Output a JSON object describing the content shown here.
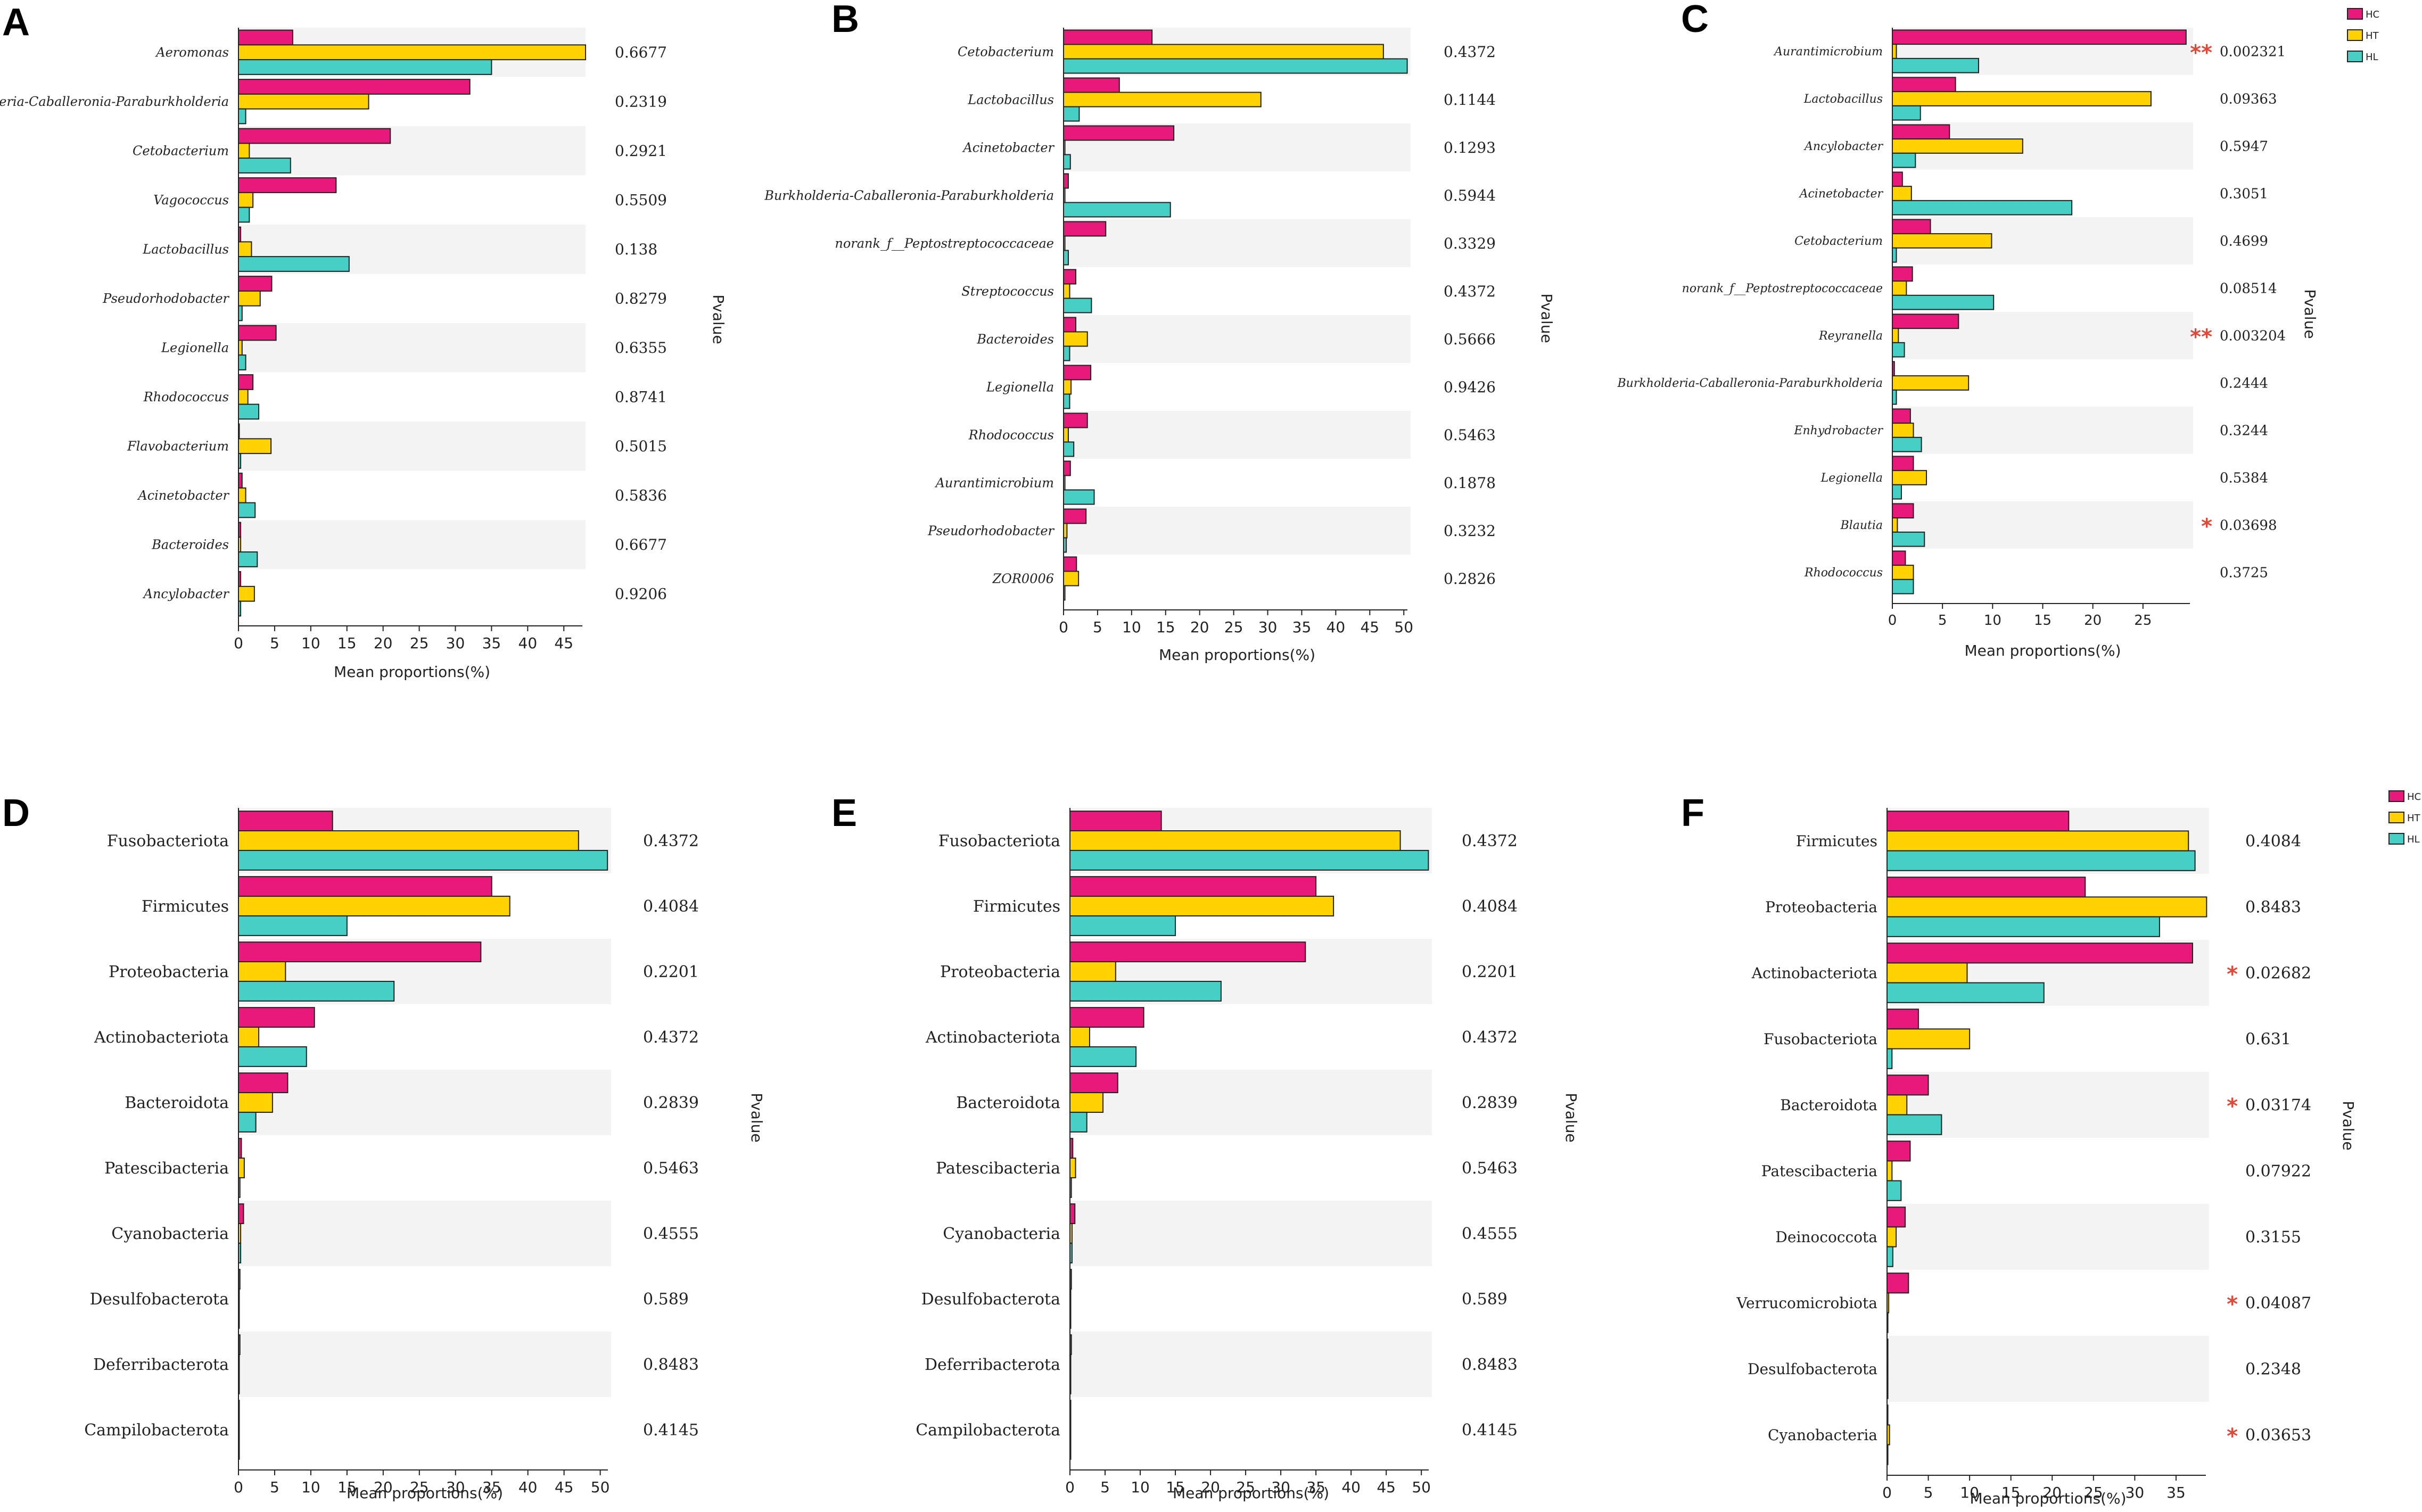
{
  "colors": {
    "HC": "#e8197a",
    "HT": "#ffd200",
    "HL": "#45cfc5",
    "band": "#f3f3f3",
    "sig": "#e0493a"
  },
  "chart_data": [
    {
      "panel": "A",
      "type": "bar",
      "orientation": "horizontal",
      "italic": true,
      "xlabel": "Mean proportions(%)",
      "pvalue_label": "Pvalue",
      "xlim": [
        0,
        48
      ],
      "xticks": [
        0,
        5,
        10,
        15,
        20,
        25,
        30,
        35,
        40,
        45
      ],
      "legend": false,
      "categories": [
        "Aeromonas",
        "Burkholderia-Caballeronia-Paraburkholderia",
        "Cetobacterium",
        "Vagococcus",
        "Lactobacillus",
        "Pseudorhodobacter",
        "Legionella",
        "Rhodococcus",
        "Flavobacterium",
        "Acinetobacter",
        "Bacteroides",
        "Ancylobacter"
      ],
      "series": [
        {
          "name": "HC",
          "values": [
            7.5,
            32,
            21,
            13.5,
            0.3,
            4.6,
            5.2,
            2.0,
            0,
            0.5,
            0.3,
            0.3
          ]
        },
        {
          "name": "HT",
          "values": [
            48,
            18,
            1.5,
            2.0,
            1.8,
            3.0,
            0.5,
            1.3,
            4.5,
            1.0,
            0.3,
            2.2
          ]
        },
        {
          "name": "HL",
          "values": [
            35,
            1.0,
            7.2,
            1.5,
            15.3,
            0.5,
            1.0,
            2.8,
            0.3,
            2.3,
            2.6,
            0.3
          ]
        }
      ],
      "pvalues": [
        "0.6677",
        "0.2319",
        "0.2921",
        "0.5509",
        "0.138",
        "0.8279",
        "0.6355",
        "0.8741",
        "0.5015",
        "0.5836",
        "0.6677",
        "0.9206"
      ],
      "sig": [
        "",
        "",
        "",
        "",
        "",
        "",
        "",
        "",
        "",
        "",
        "",
        ""
      ]
    },
    {
      "panel": "B",
      "type": "bar",
      "orientation": "horizontal",
      "italic": true,
      "xlabel": "Mean proportions(%)",
      "pvalue_label": "Pvalue",
      "xlim": [
        0,
        51
      ],
      "xticks": [
        0,
        5,
        10,
        15,
        20,
        25,
        30,
        35,
        40,
        45,
        50
      ],
      "legend": false,
      "categories": [
        "Cetobacterium",
        "Lactobacillus",
        "Acinetobacter",
        "Burkholderia-Caballeronia-Paraburkholderia",
        "norank_f__Peptostreptococcaceae",
        "Streptococcus",
        "Bacteroides",
        "Legionella",
        "Rhodococcus",
        "Aurantimicrobium",
        "Pseudorhodobacter",
        "ZOR0006"
      ],
      "series": [
        {
          "name": "HC",
          "values": [
            13,
            8.2,
            16.2,
            0.7,
            6.2,
            1.8,
            1.8,
            4.0,
            3.5,
            1.0,
            3.3,
            1.9
          ]
        },
        {
          "name": "HT",
          "values": [
            47,
            29,
            0.2,
            0.2,
            0.2,
            0.9,
            3.5,
            1.1,
            0.7,
            0.2,
            0.5,
            2.2
          ]
        },
        {
          "name": "HL",
          "values": [
            50.5,
            2.3,
            1.0,
            15.7,
            0.7,
            4.1,
            0.9,
            0.9,
            1.5,
            4.5,
            0.4,
            0.2
          ]
        }
      ],
      "pvalues": [
        "0.4372",
        "0.1144",
        "0.1293",
        "0.5944",
        "0.3329",
        "0.4372",
        "0.5666",
        "0.9426",
        "0.5463",
        "0.1878",
        "0.3232",
        "0.2826"
      ],
      "sig": [
        "",
        "",
        "",
        "",
        "",
        "",
        "",
        "",
        "",
        "",
        "",
        ""
      ]
    },
    {
      "panel": "C",
      "type": "bar",
      "orientation": "horizontal",
      "italic": true,
      "xlabel": "Mean proportions(%)",
      "pvalue_label": "Pvalue",
      "xlim": [
        0,
        30
      ],
      "xticks": [
        0,
        5,
        10,
        15,
        20,
        25
      ],
      "legend": true,
      "categories": [
        "Aurantimicrobium",
        "Lactobacillus",
        "Ancylobacter",
        "Acinetobacter",
        "Cetobacterium",
        "norank_f__Peptostreptococcaceae",
        "Reyranella",
        "Burkholderia-Caballeronia-Paraburkholderia",
        "Enhydrobacter",
        "Legionella",
        "Blautia",
        "Rhodococcus"
      ],
      "series": [
        {
          "name": "HC",
          "values": [
            29.3,
            6.3,
            5.7,
            1.0,
            3.8,
            2.0,
            6.6,
            0.2,
            1.8,
            2.1,
            2.1,
            1.3
          ]
        },
        {
          "name": "HT",
          "values": [
            0.4,
            25.8,
            13.0,
            1.9,
            9.9,
            1.4,
            0.6,
            7.6,
            2.1,
            3.4,
            0.5,
            2.1
          ]
        },
        {
          "name": "HL",
          "values": [
            8.6,
            2.8,
            2.3,
            17.9,
            0.4,
            10.1,
            1.2,
            0.4,
            2.9,
            0.9,
            3.2,
            2.1
          ]
        }
      ],
      "pvalues": [
        "0.002321",
        "0.09363",
        "0.5947",
        "0.3051",
        "0.4699",
        "0.08514",
        "0.003204",
        "0.2444",
        "0.3244",
        "0.5384",
        "0.03698",
        "0.3725"
      ],
      "sig": [
        "**",
        "",
        "",
        "",
        "",
        "",
        "**",
        "",
        "",
        "",
        "*",
        ""
      ]
    },
    {
      "panel": "D",
      "type": "bar",
      "orientation": "horizontal",
      "italic": false,
      "xlabel": "Mean proportions(%)",
      "pvalue_label": "Pvalue",
      "xlim": [
        0,
        51.5
      ],
      "xticks": [
        0,
        5,
        10,
        15,
        20,
        25,
        30,
        35,
        40,
        45,
        50
      ],
      "legend": false,
      "categories": [
        "Fusobacteriota",
        "Firmicutes",
        "Proteobacteria",
        "Actinobacteriota",
        "Bacteroidota",
        "Patescibacteria",
        "Cyanobacteria",
        "Desulfobacterota",
        "Deferribacterota",
        "Campilobacterota"
      ],
      "series": [
        {
          "name": "HC",
          "values": [
            13,
            35,
            33.5,
            10.5,
            6.8,
            0.4,
            0.7,
            0.2,
            0.2,
            0.1
          ]
        },
        {
          "name": "HT",
          "values": [
            47,
            37.5,
            6.5,
            2.8,
            4.7,
            0.8,
            0.3,
            0.1,
            0.1,
            0.1
          ]
        },
        {
          "name": "HL",
          "values": [
            51,
            15,
            21.5,
            9.4,
            2.4,
            0.2,
            0.3,
            0.1,
            0.1,
            0.1
          ]
        }
      ],
      "pvalues": [
        "0.4372",
        "0.4084",
        "0.2201",
        "0.4372",
        "0.2839",
        "0.5463",
        "0.4555",
        "0.589",
        "0.8483",
        "0.4145"
      ],
      "sig": [
        "",
        "",
        "",
        "",
        "",
        "",
        "",
        "",
        "",
        ""
      ]
    },
    {
      "panel": "E",
      "type": "bar",
      "orientation": "horizontal",
      "italic": false,
      "xlabel": "Mean proportions(%)",
      "pvalue_label": "Pvalue",
      "xlim": [
        0,
        51.5
      ],
      "xticks": [
        0,
        5,
        10,
        15,
        20,
        25,
        30,
        35,
        40,
        45,
        50
      ],
      "legend": false,
      "categories": [
        "Fusobacteriota",
        "Firmicutes",
        "Proteobacteria",
        "Actinobacteriota",
        "Bacteroidota",
        "Patescibacteria",
        "Cyanobacteria",
        "Desulfobacterota",
        "Deferribacterota",
        "Campilobacterota"
      ],
      "series": [
        {
          "name": "HC",
          "values": [
            13,
            35,
            33.5,
            10.5,
            6.8,
            0.4,
            0.7,
            0.2,
            0.2,
            0.1
          ]
        },
        {
          "name": "HT",
          "values": [
            47,
            37.5,
            6.5,
            2.8,
            4.7,
            0.8,
            0.3,
            0.1,
            0.1,
            0.1
          ]
        },
        {
          "name": "HL",
          "values": [
            51,
            15,
            21.5,
            9.4,
            2.4,
            0.2,
            0.3,
            0.1,
            0.1,
            0.1
          ]
        }
      ],
      "pvalues": [
        "0.4372",
        "0.4084",
        "0.2201",
        "0.4372",
        "0.2839",
        "0.5463",
        "0.4555",
        "0.589",
        "0.8483",
        "0.4145"
      ],
      "sig": [
        "",
        "",
        "",
        "",
        "",
        "",
        "",
        "",
        "",
        ""
      ]
    },
    {
      "panel": "F",
      "type": "bar",
      "orientation": "horizontal",
      "italic": false,
      "xlabel": "Mean proportions(%)",
      "pvalue_label": "Pvalue",
      "xlim": [
        0,
        39
      ],
      "xticks": [
        0,
        5,
        10,
        15,
        20,
        25,
        30,
        35
      ],
      "legend": true,
      "categories": [
        "Firmicutes",
        "Proteobacteria",
        "Actinobacteriota",
        "Fusobacteriota",
        "Bacteroidota",
        "Patescibacteria",
        "Deinococcota",
        "Verrucomicrobiota",
        "Desulfobacterota",
        "Cyanobacteria"
      ],
      "series": [
        {
          "name": "HC",
          "values": [
            22,
            24,
            37,
            3.8,
            5.0,
            2.8,
            2.2,
            2.6,
            0.1,
            0.1
          ]
        },
        {
          "name": "HT",
          "values": [
            36.5,
            38.7,
            9.7,
            10.0,
            2.4,
            0.6,
            1.1,
            0.2,
            0.1,
            0.3
          ]
        },
        {
          "name": "HL",
          "values": [
            37.3,
            33,
            19,
            0.6,
            6.6,
            1.7,
            0.7,
            0.1,
            0.1,
            0.1
          ]
        }
      ],
      "pvalues": [
        "0.4084",
        "0.8483",
        "0.02682",
        "0.631",
        "0.03174",
        "0.07922",
        "0.3155",
        "0.04087",
        "0.2348",
        "0.03653"
      ],
      "sig": [
        "",
        "",
        "*",
        "",
        "*",
        "",
        "",
        "*",
        "",
        "*"
      ]
    }
  ]
}
